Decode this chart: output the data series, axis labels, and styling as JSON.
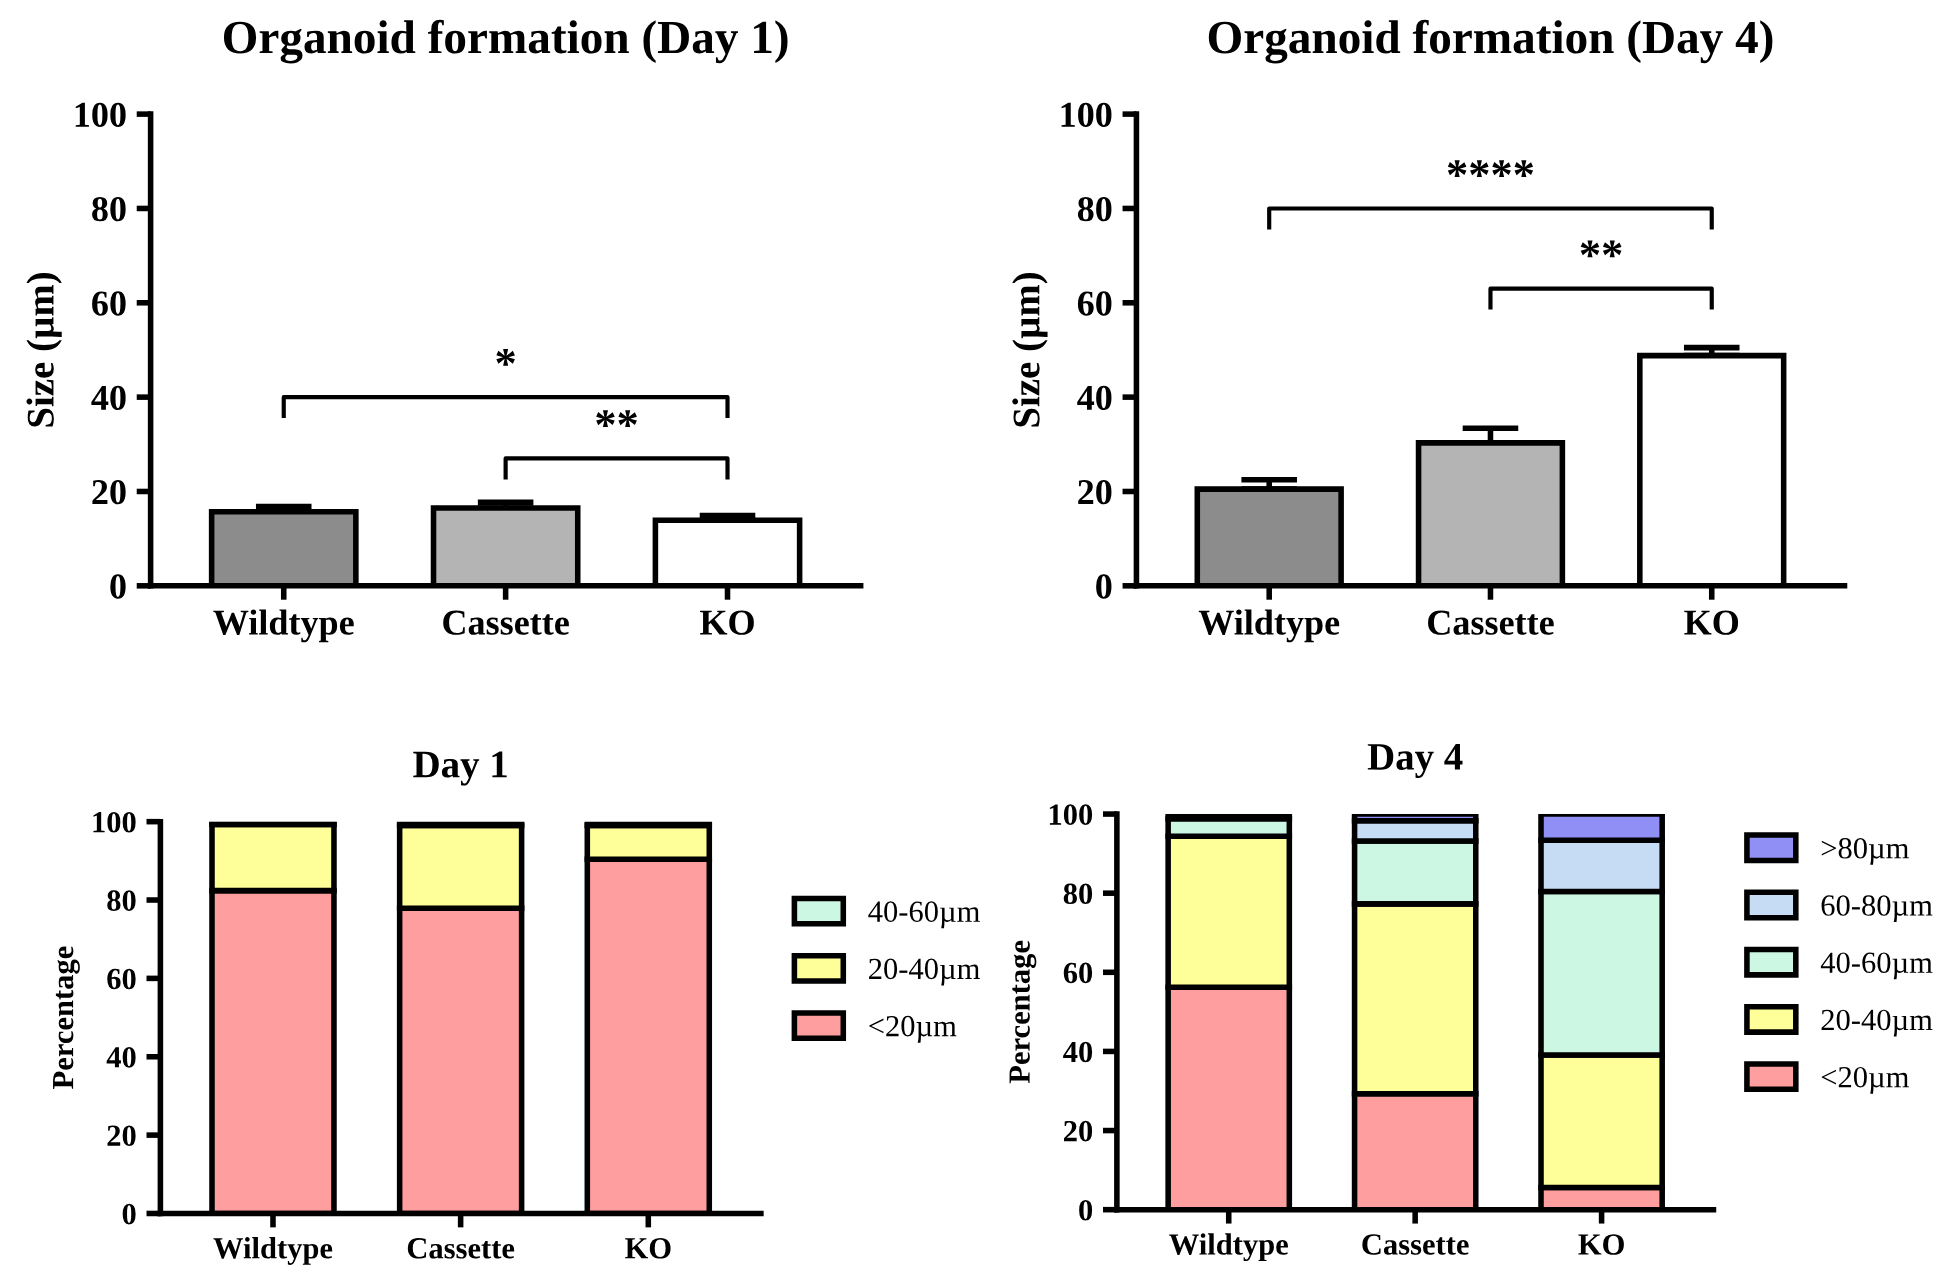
{
  "chart_data": [
    {
      "type": "bar",
      "title": "Organoid formation (Day 1)",
      "ylabel": "Size (µm)",
      "categories": [
        "Wildtype",
        "Cassette",
        "KO"
      ],
      "values": [
        15.7,
        16.5,
        13.9
      ],
      "errors": [
        [
          15.7,
          16.8
        ],
        [
          16.5,
          17.7
        ],
        [
          13.9,
          14.9
        ]
      ],
      "colors": [
        "#8c8c8c",
        "#b4b4b4",
        "#ffffff"
      ],
      "ylim": [
        0,
        100
      ],
      "yticks": [
        0,
        20,
        40,
        60,
        80,
        100
      ],
      "annotations": [
        "*",
        "**"
      ]
    },
    {
      "type": "bar",
      "title": "Organoid formation (Day 4)",
      "ylabel": "Size (µm)",
      "categories": [
        "Wildtype",
        "Cassette",
        "KO"
      ],
      "values": [
        20.5,
        30.3,
        48.8
      ],
      "errors": [
        [
          20.5,
          22.5
        ],
        [
          30.3,
          33.4
        ],
        [
          48.8,
          50.5
        ]
      ],
      "colors": [
        "#8c8c8c",
        "#b4b4b4",
        "#ffffff"
      ],
      "ylim": [
        0,
        100
      ],
      "yticks": [
        0,
        20,
        40,
        60,
        80,
        100
      ],
      "annotations": [
        "****",
        "**"
      ]
    },
    {
      "type": "bar",
      "title": "Day 1",
      "ylabel": "Percentage",
      "categories": [
        "Wildtype",
        "Cassette",
        "KO"
      ],
      "stacked": true,
      "legend": "right",
      "ylim": [
        0,
        100
      ],
      "yticks": [
        0,
        20,
        40,
        60,
        80,
        100
      ],
      "series": [
        {
          "name": "<20µm",
          "color": "#ff9e9e",
          "values": [
            82.4,
            77.9,
            90.4
          ]
        },
        {
          "name": "20-40µm",
          "color": "#ffff99",
          "values": [
            16.9,
            21.1,
            8.6
          ]
        },
        {
          "name": "40-60µm",
          "color": "#ccf7e3",
          "values": [
            0.7,
            1.0,
            1.0
          ]
        }
      ]
    },
    {
      "type": "bar",
      "title": "Day 4",
      "ylabel": "Percentage",
      "categories": [
        "Wildtype",
        "Cassette",
        "KO"
      ],
      "stacked": true,
      "legend": "right",
      "ylim": [
        0,
        100
      ],
      "yticks": [
        0,
        20,
        40,
        60,
        80,
        100
      ],
      "series": [
        {
          "name": "<20µm",
          "color": "#ff9e9e",
          "values": [
            56.2,
            29.3,
            5.6
          ]
        },
        {
          "name": "20-40µm",
          "color": "#ffff99",
          "values": [
            38.2,
            48.0,
            33.5
          ]
        },
        {
          "name": "40-60µm",
          "color": "#ccf7e3",
          "values": [
            4.4,
            15.9,
            41.3
          ]
        },
        {
          "name": "60-80µm",
          "color": "#c6dcf5",
          "values": [
            1.2,
            5.1,
            13.0
          ]
        },
        {
          "name": ">80µm",
          "color": "#8f8ff5",
          "values": [
            0.0,
            1.7,
            6.6
          ]
        }
      ]
    }
  ]
}
